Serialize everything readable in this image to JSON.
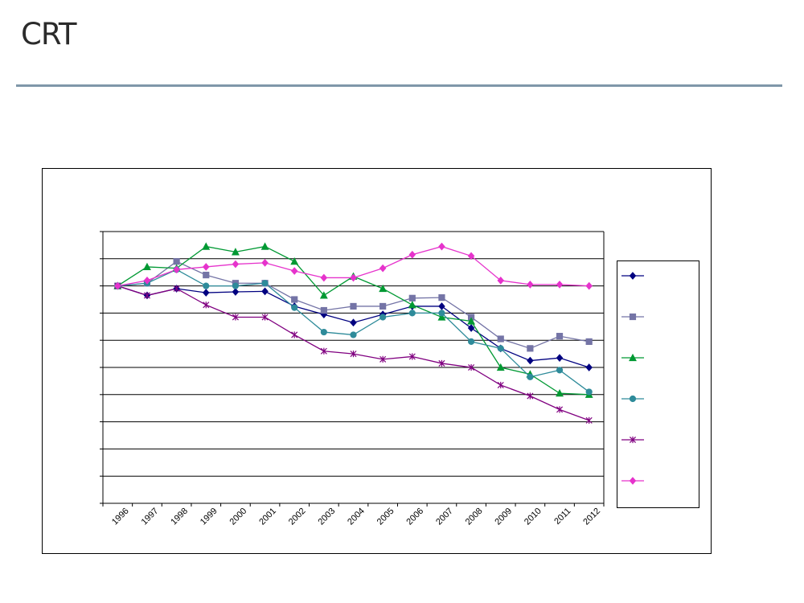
{
  "logo": {
    "text": "CRT"
  },
  "chart_data": {
    "type": "line",
    "x": [
      "1996",
      "1997",
      "1998",
      "1999",
      "2000",
      "2001",
      "2002",
      "2003",
      "2004",
      "2005",
      "2006",
      "2007",
      "2008",
      "2009",
      "2010",
      "2011",
      "2012"
    ],
    "ylim": [
      -80,
      20
    ],
    "grid": true,
    "legend_position": "right",
    "series": [
      {
        "marker": "diamond",
        "color": "#000080",
        "values": [
          0,
          -3.5,
          -1,
          -2.5,
          -2.2,
          -2,
          -7.5,
          -10.5,
          -13.5,
          -10.5,
          -7.5,
          -7.5,
          -15.5,
          -23,
          -27.5,
          -26.5,
          -30
        ]
      },
      {
        "marker": "square",
        "color": "#7474a6",
        "values": [
          0,
          1,
          9,
          4,
          1,
          1,
          -5,
          -9,
          -7.5,
          -7.5,
          -4.5,
          -4.3,
          -11.5,
          -19.5,
          -23,
          -18.5,
          -20.5
        ]
      },
      {
        "marker": "triangle",
        "color": "#009933",
        "values": [
          0,
          7,
          6.5,
          14.5,
          12.5,
          14.5,
          9,
          -3.5,
          3.5,
          -1,
          -7,
          -11.5,
          -13,
          -30,
          -32.5,
          -39.5,
          -40
        ]
      },
      {
        "marker": "circle",
        "color": "#2e8b9a",
        "values": [
          0,
          1,
          6,
          0,
          0,
          1,
          -8,
          -17,
          -18,
          -11.5,
          -10,
          -10,
          -20.5,
          -23,
          -33.5,
          -31,
          -39
        ]
      },
      {
        "marker": "star",
        "color": "#800080",
        "values": [
          0,
          -3.5,
          -1,
          -7,
          -11.5,
          -11.5,
          -18,
          -24,
          -25,
          -27,
          -26,
          -28.5,
          -30,
          -36.5,
          -40.5,
          -45.5,
          -49.5
        ]
      },
      {
        "marker": "diamond",
        "color": "#e633cc",
        "values": [
          0,
          2,
          6,
          7,
          8,
          8.5,
          5.5,
          3,
          3,
          6.5,
          11.5,
          14.5,
          11,
          2,
          0.5,
          0.5,
          0
        ]
      }
    ]
  }
}
